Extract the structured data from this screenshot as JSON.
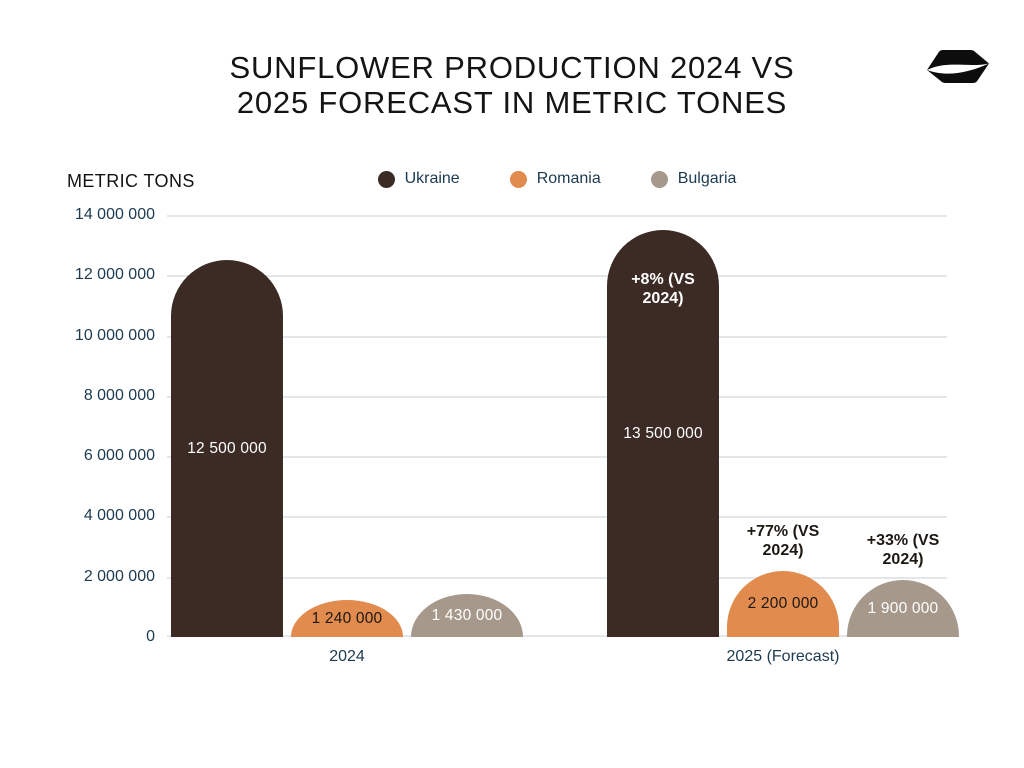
{
  "header": {
    "title_line1": "SUNFLOWER PRODUCTION 2024 VS",
    "title_line2": "2025 FORECAST IN METRIC TONES"
  },
  "axis": {
    "unit_label": "METRIC TONS"
  },
  "logo": {
    "name": "seed-logo",
    "color": "#0D0D0D"
  },
  "chart_data": {
    "type": "bar",
    "title": "SUNFLOWER PRODUCTION 2024 VS 2025 FORECAST IN METRIC TONES",
    "ylabel": "METRIC TONS",
    "xlabel": "",
    "ylim": [
      0,
      14000000
    ],
    "ytick_interval": 2000000,
    "yticks": [
      "14 000 000",
      "12 000 000",
      "10 000 000",
      "8 000 000",
      "6 000 000",
      "4 000 000",
      "2 000 000",
      "0"
    ],
    "grid": true,
    "legend_position": "top",
    "categories": [
      "2024",
      "2025 (Forecast)"
    ],
    "series": [
      {
        "name": "Ukraine",
        "color": "#3C2B25",
        "value_text_color": "#FFFFFF",
        "values": [
          12500000,
          13500000
        ],
        "value_labels": [
          "12 500 000",
          "13 500 000"
        ],
        "annotations": [
          null,
          {
            "lines": [
              "+8% (VS",
              "2024)"
            ],
            "placement": "inside",
            "color": "#FFFFFF"
          }
        ]
      },
      {
        "name": "Romania",
        "color": "#E18B4E",
        "value_text_color": "#1D1812",
        "values": [
          1240000,
          2200000
        ],
        "value_labels": [
          "1 240 000",
          "2 200 000"
        ],
        "annotations": [
          null,
          {
            "lines": [
              "+77% (VS",
              "2024)"
            ],
            "placement": "above",
            "color": "#1D1812"
          }
        ]
      },
      {
        "name": "Bulgaria",
        "color": "#A6988B",
        "value_text_color": "#FFFFFF",
        "values": [
          1430000,
          1900000
        ],
        "value_labels": [
          "1 430 000",
          "1 900 000"
        ],
        "annotations": [
          null,
          {
            "lines": [
              "+33% (VS",
              "2024)"
            ],
            "placement": "above",
            "color": "#1D1812"
          }
        ]
      }
    ],
    "colors": {
      "grid": "#E3E7EA",
      "axis_text": "#1C3A50",
      "title_text": "#141414",
      "background": "#FFFFFF"
    }
  }
}
